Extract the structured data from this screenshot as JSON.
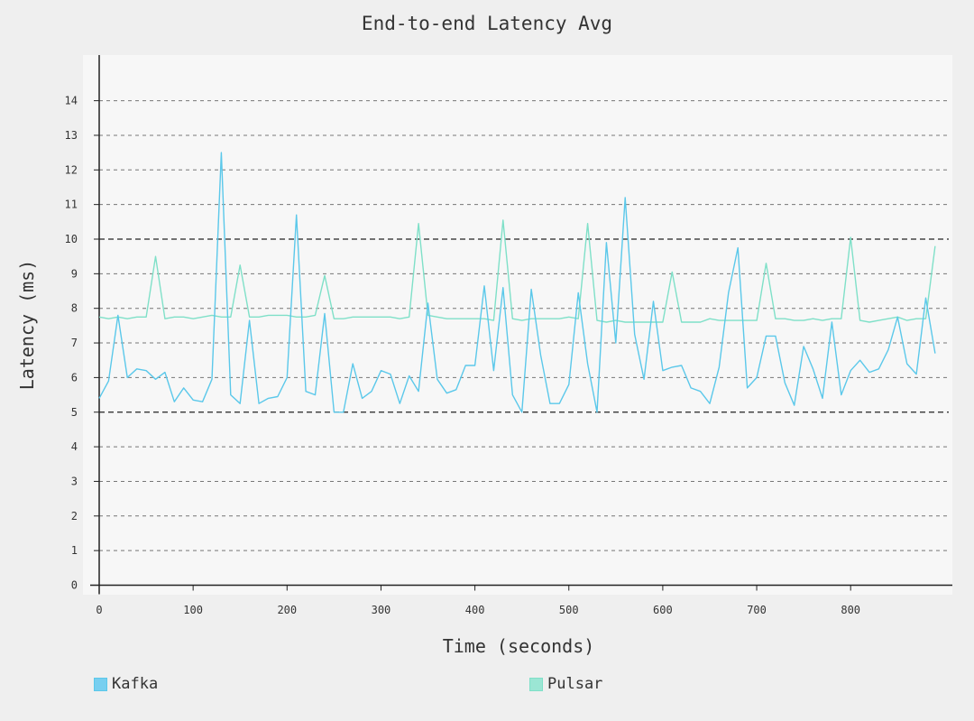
{
  "chart_data": {
    "type": "line",
    "title": "End-to-end Latency Avg",
    "xlabel": "Time (seconds)",
    "ylabel": "Latency (ms)",
    "xlim": [
      0,
      910
    ],
    "ylim": [
      0,
      15
    ],
    "x_ticks": [
      0,
      100,
      200,
      300,
      400,
      500,
      600,
      700,
      800
    ],
    "y_ticks": [
      0,
      1,
      2,
      3,
      4,
      5,
      6,
      7,
      8,
      9,
      10,
      11,
      12,
      13,
      14
    ],
    "highlighted_y_lines": [
      5,
      10
    ],
    "grid": true,
    "legend_position": "bottom",
    "colors": {
      "Kafka": "#5bc8ea",
      "Pulsar": "#7fe0c8",
      "kafka_swatch": "#77cff0",
      "pulsar_swatch": "#9be6d4",
      "plot_bg": "#f7f7f7",
      "page_bg": "#efefef"
    },
    "x": [
      0,
      10,
      20,
      30,
      40,
      50,
      60,
      70,
      80,
      90,
      100,
      110,
      120,
      130,
      140,
      150,
      160,
      170,
      180,
      190,
      200,
      210,
      220,
      230,
      240,
      250,
      260,
      270,
      280,
      290,
      300,
      310,
      320,
      330,
      340,
      350,
      360,
      370,
      380,
      390,
      400,
      410,
      420,
      430,
      440,
      450,
      460,
      470,
      480,
      490,
      500,
      510,
      520,
      530,
      540,
      550,
      560,
      570,
      580,
      590,
      600,
      610,
      620,
      630,
      640,
      650,
      660,
      670,
      680,
      690,
      700,
      710,
      720,
      730,
      740,
      750,
      760,
      770,
      780,
      790,
      800,
      810,
      820,
      830,
      840,
      850,
      860,
      870,
      880,
      890
    ],
    "series": [
      {
        "name": "Kafka",
        "values": [
          5.4,
          5.9,
          7.8,
          6.0,
          6.25,
          6.2,
          5.95,
          6.15,
          5.3,
          5.7,
          5.35,
          5.3,
          5.95,
          12.5,
          5.5,
          5.25,
          7.65,
          5.25,
          5.4,
          5.45,
          6.0,
          10.7,
          5.6,
          5.5,
          7.85,
          5.0,
          5.0,
          6.4,
          5.4,
          5.6,
          6.2,
          6.1,
          5.25,
          6.05,
          5.6,
          8.15,
          5.95,
          5.55,
          5.65,
          6.35,
          6.35,
          8.65,
          6.2,
          8.6,
          5.5,
          5.0,
          8.55,
          6.65,
          5.25,
          5.25,
          5.8,
          8.45,
          6.4,
          5.0,
          9.9,
          7.0,
          11.2,
          7.25,
          5.95,
          8.2,
          6.2,
          6.3,
          6.35,
          5.7,
          5.6,
          5.25,
          6.3,
          8.45,
          9.75,
          5.7,
          6.0,
          7.2,
          7.2,
          5.85,
          5.2,
          6.9,
          6.25,
          5.4,
          7.6,
          5.5,
          6.2,
          6.5,
          6.15,
          6.25,
          6.8,
          7.75,
          6.4,
          6.1,
          8.3,
          6.7
        ]
      },
      {
        "name": "Pulsar",
        "values": [
          7.75,
          7.7,
          7.75,
          7.7,
          7.75,
          7.75,
          9.5,
          7.7,
          7.75,
          7.75,
          7.7,
          7.75,
          7.8,
          7.75,
          7.75,
          9.25,
          7.75,
          7.75,
          7.8,
          7.8,
          7.8,
          7.75,
          7.75,
          7.8,
          8.95,
          7.7,
          7.7,
          7.75,
          7.75,
          7.75,
          7.75,
          7.75,
          7.7,
          7.75,
          10.45,
          7.8,
          7.75,
          7.7,
          7.7,
          7.7,
          7.7,
          7.7,
          7.65,
          10.55,
          7.7,
          7.65,
          7.7,
          7.7,
          7.7,
          7.7,
          7.75,
          7.7,
          10.45,
          7.65,
          7.6,
          7.65,
          7.6,
          7.6,
          7.6,
          7.6,
          7.6,
          9.05,
          7.6,
          7.6,
          7.6,
          7.7,
          7.65,
          7.65,
          7.65,
          7.65,
          7.65,
          9.3,
          7.7,
          7.7,
          7.65,
          7.65,
          7.7,
          7.65,
          7.7,
          7.7,
          10.05,
          7.65,
          7.6,
          7.65,
          7.7,
          7.75,
          7.65,
          7.7,
          7.7,
          9.8
        ]
      }
    ]
  }
}
